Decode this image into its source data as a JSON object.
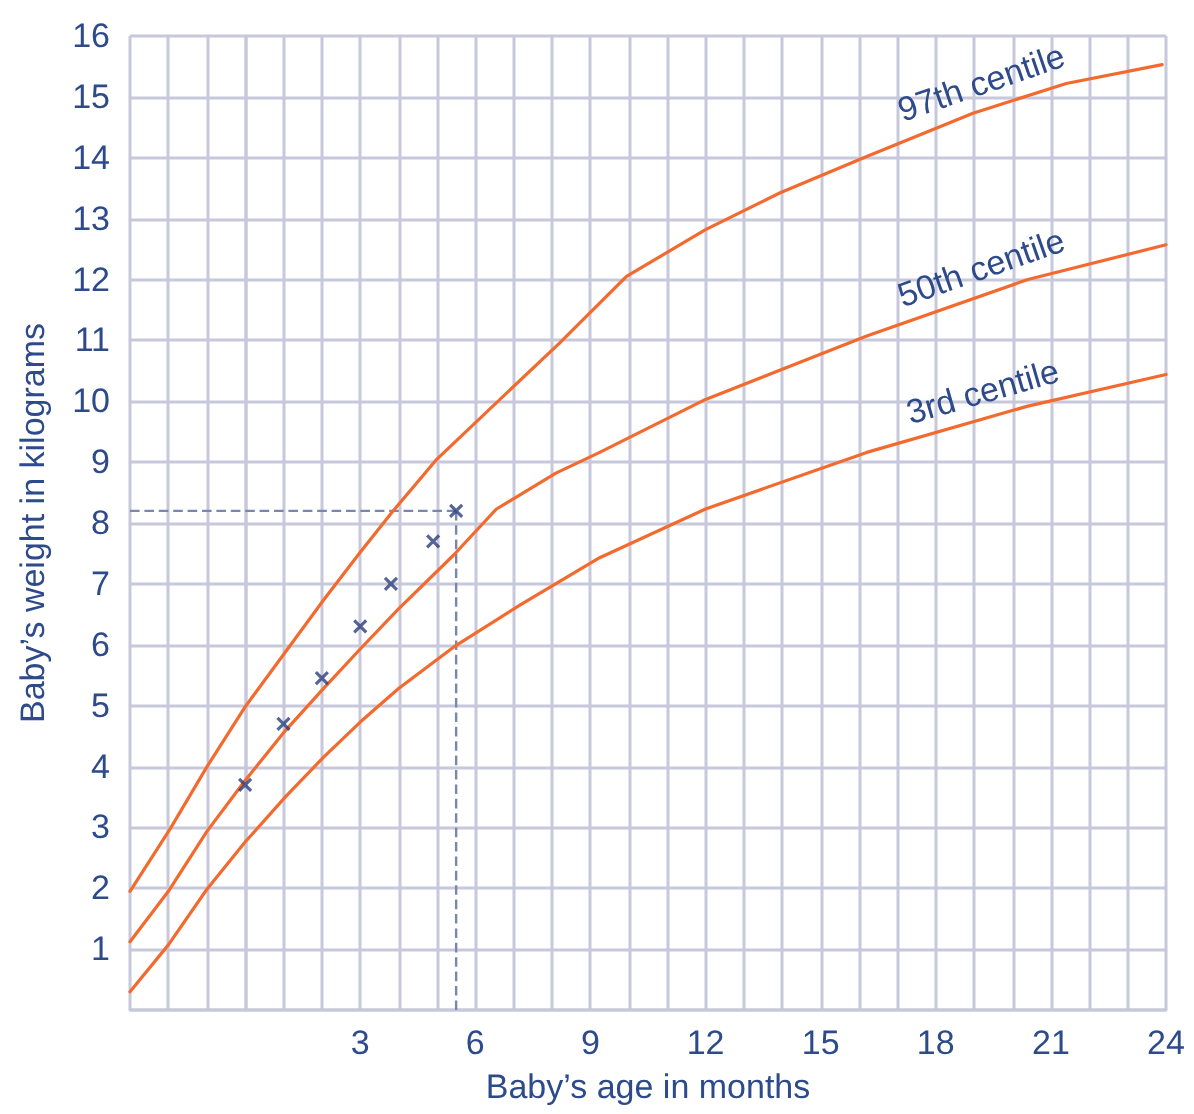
{
  "chart_data": {
    "type": "line",
    "xlabel": "Baby’s age in months",
    "ylabel": "Baby’s weight in kilograms",
    "xlim": [
      -3,
      24
    ],
    "xticks": [
      3,
      6,
      9,
      12,
      15,
      18,
      21,
      24
    ],
    "ylim": [
      0,
      16
    ],
    "yticks": [
      1,
      2,
      3,
      4,
      5,
      6,
      7,
      8,
      9,
      10,
      11,
      12,
      13,
      14,
      15,
      16
    ],
    "grid": true,
    "legend": false,
    "marker": "none",
    "line_style": "solid",
    "series": [
      {
        "name": "97th centile",
        "color": "#f26a2e",
        "x": [
          -3,
          -1.95,
          -1,
          0,
          1.05,
          2.04,
          3,
          3.86,
          5,
          8.2,
          9.94,
          12,
          13.93,
          16.2,
          18.97,
          21.4,
          23.9
        ],
        "values": [
          1.95,
          2.98,
          3.99,
          4.98,
          5.88,
          6.73,
          7.52,
          8.2,
          9.05,
          10.96,
          12.05,
          12.82,
          13.42,
          14.02,
          14.73,
          15.22,
          15.53
        ]
      },
      {
        "name": "50th centile",
        "color": "#f26a2e",
        "x": [
          -3,
          -2,
          -1,
          0,
          1.05,
          2.04,
          3,
          4,
          5.43,
          6.55,
          8.1,
          9.24,
          12,
          16.2,
          20.4,
          24
        ],
        "values": [
          1.12,
          1.95,
          2.93,
          3.77,
          4.59,
          5.28,
          5.93,
          6.59,
          7.47,
          8.23,
          8.82,
          9.16,
          10.03,
          11.07,
          12.0,
          12.57
        ]
      },
      {
        "name": "3rd centile",
        "color": "#f26a2e",
        "x": [
          -3,
          -2,
          -1,
          0,
          1.05,
          2.04,
          3,
          4,
          5.43,
          7.16,
          9.24,
          12,
          16.2,
          20.4,
          24
        ],
        "values": [
          0.3,
          1.07,
          1.98,
          2.76,
          3.5,
          4.15,
          4.73,
          5.28,
          5.96,
          6.65,
          7.43,
          8.23,
          9.16,
          9.92,
          10.44
        ]
      },
      {
        "type": "scatter",
        "marker": "cross",
        "color": "#2a3f7a",
        "x": [
          0,
          1,
          2,
          3,
          3.8,
          4.9,
          5.5
        ],
        "values": [
          3.7,
          4.7,
          5.45,
          6.3,
          7.0,
          7.7,
          8.2
        ]
      }
    ],
    "ref_lines": [
      {
        "axis": "y",
        "value": 8.2,
        "color": "#7a86b0",
        "line_style": "dashed"
      },
      {
        "axis": "x",
        "value": 5.5,
        "color": "#7a86b0",
        "line_style": "dashed"
      }
    ]
  }
}
